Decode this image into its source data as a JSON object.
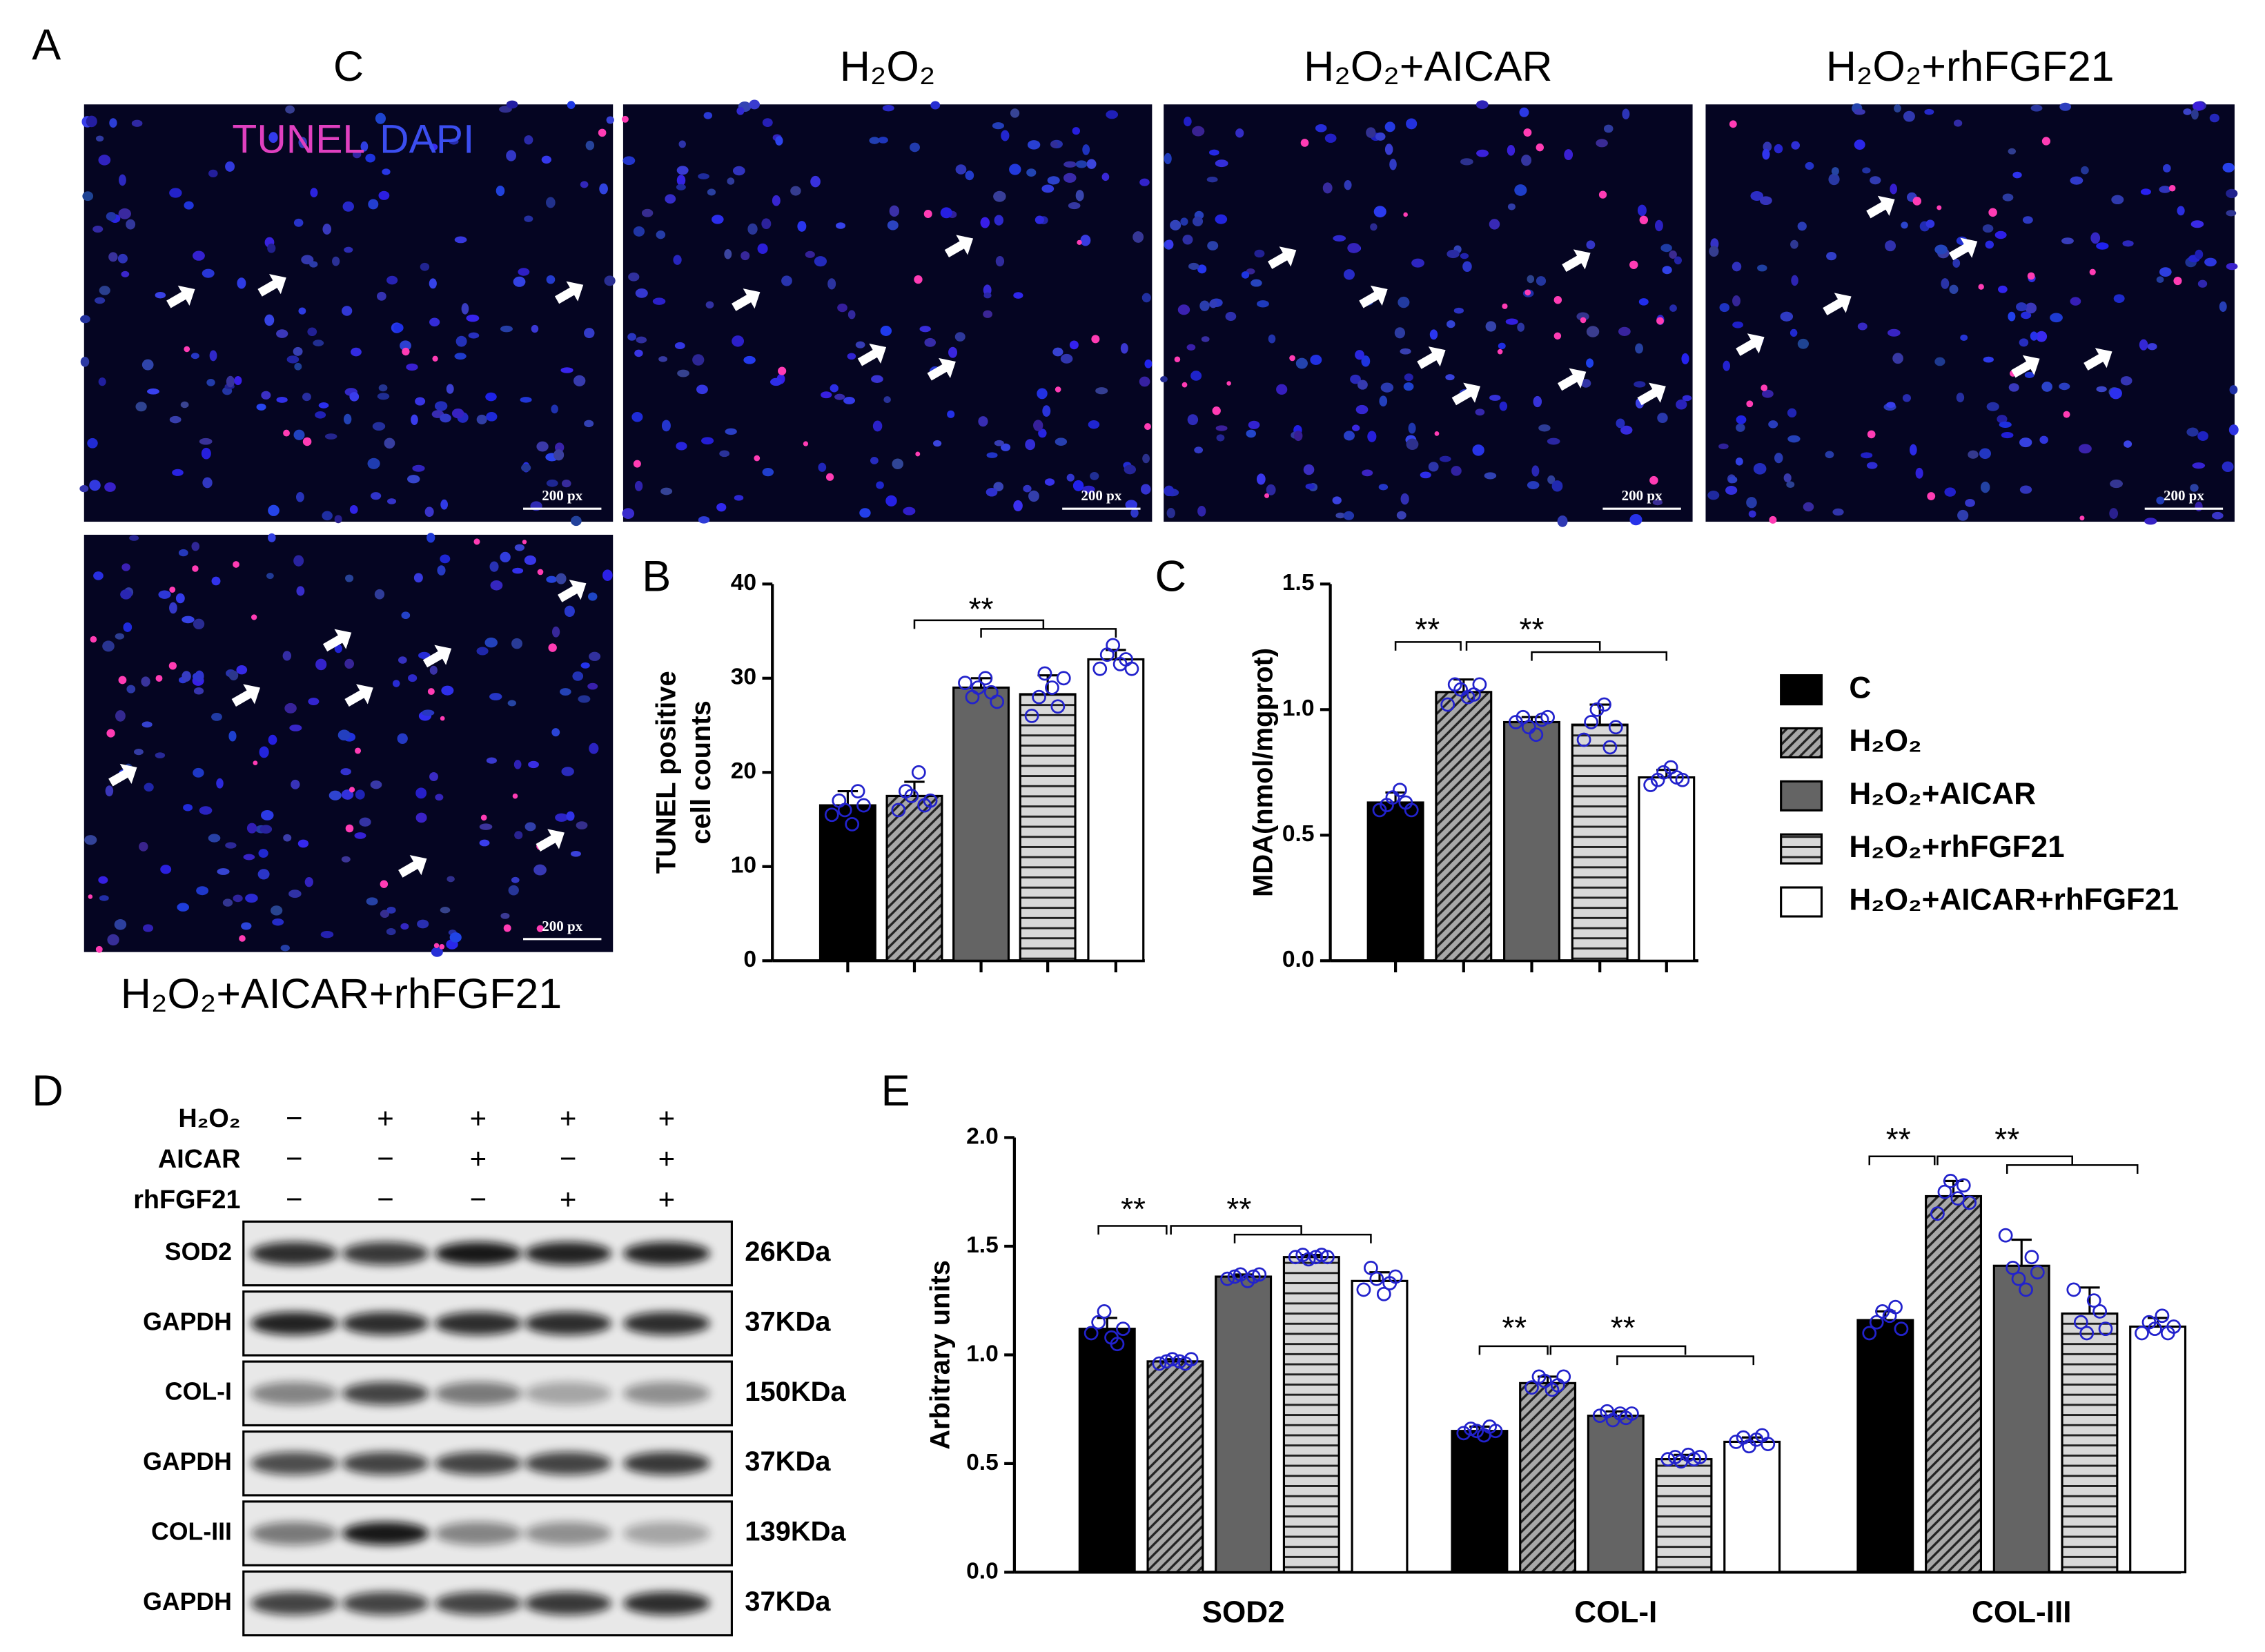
{
  "panel_labels": [
    "A",
    "B",
    "C",
    "D",
    "E"
  ],
  "micrographs": {
    "groups": [
      "C",
      "H₂O₂",
      "H₂O₂+AICAR",
      "H₂O₂+rhFGF21",
      "H₂O₂+AICAR+rhFGF21"
    ],
    "stain_labels": [
      "TUNEL",
      "DAPI"
    ],
    "scale_bar": "200 px"
  },
  "blot": {
    "conditions": [
      {
        "label": "H₂O₂",
        "signs": [
          "−",
          "+",
          "+",
          "+",
          "+"
        ]
      },
      {
        "label": "AICAR",
        "signs": [
          "−",
          "−",
          "+",
          "−",
          "+"
        ]
      },
      {
        "label": "rhFGF21",
        "signs": [
          "−",
          "−",
          "−",
          "+",
          "+"
        ]
      }
    ],
    "bands": [
      {
        "protein": "SOD2",
        "size": "26KDa"
      },
      {
        "protein": "GAPDH",
        "size": "37KDa"
      },
      {
        "protein": "COL-I",
        "size": "150KDa"
      },
      {
        "protein": "GAPDH",
        "size": "37KDa"
      },
      {
        "protein": "COL-III",
        "size": "139KDa"
      },
      {
        "protein": "GAPDH",
        "size": "37KDa"
      }
    ]
  },
  "chart_data": [
    {
      "type": "bar",
      "y_label": [
        "TUNEL positive",
        "cell counts"
      ],
      "categories": [
        null,
        null,
        null,
        null,
        null
      ],
      "values": [
        16.5,
        17.5,
        29,
        28.3,
        32
      ],
      "errors": [
        1.5,
        1.5,
        1,
        2,
        1
      ],
      "points": [
        [
          15.5,
          17,
          16,
          14.5,
          18,
          16.5
        ],
        [
          16,
          18,
          17.5,
          20,
          16.5,
          17
        ],
        [
          29.5,
          28,
          29,
          30,
          28.5,
          27.5
        ],
        [
          26,
          28,
          30.5,
          29,
          27,
          30
        ],
        [
          31,
          32.5,
          33.5,
          31.5,
          32,
          31
        ]
      ],
      "colors": [
        "#000000",
        "#a8a8a8",
        "#646464",
        "#d8d8d8",
        "#ffffff"
      ],
      "patterns": [
        null,
        "diagonal",
        null,
        "horizontal",
        null
      ],
      "point_color": "#2222cc",
      "ylim": [
        0,
        40
      ],
      "yticks": [
        0,
        10,
        20,
        30,
        40
      ],
      "annotations": [
        "**"
      ]
    },
    {
      "type": "bar",
      "y_label": [
        "MDA(nmol/mgprot)"
      ],
      "categories": [
        null,
        null,
        null,
        null,
        null
      ],
      "values": [
        0.63,
        1.07,
        0.95,
        0.94,
        0.73
      ],
      "errors": [
        0.04,
        0.05,
        0.02,
        0.08,
        0.03
      ],
      "points": [
        [
          0.6,
          0.62,
          0.65,
          0.68,
          0.63,
          0.6
        ],
        [
          1.02,
          1.1,
          1.08,
          1.05,
          1.06,
          1.1
        ],
        [
          0.95,
          0.97,
          0.93,
          0.9,
          0.96,
          0.97
        ],
        [
          0.88,
          0.95,
          1.0,
          1.02,
          0.85,
          0.93
        ],
        [
          0.7,
          0.72,
          0.75,
          0.77,
          0.73,
          0.72
        ]
      ],
      "colors": [
        "#000000",
        "#a8a8a8",
        "#646464",
        "#d8d8d8",
        "#ffffff"
      ],
      "patterns": [
        null,
        "diagonal",
        null,
        "horizontal",
        null
      ],
      "point_color": "#2222cc",
      "ylim": [
        0,
        1.5
      ],
      "yticks": [
        {
          "value": 0,
          "label": "0.0"
        },
        {
          "value": 0.5,
          "label": "0.5"
        },
        {
          "value": 1,
          "label": "1.0"
        },
        {
          "value": 1.5,
          "label": "1.5"
        }
      ],
      "annotations": [
        "**",
        "**"
      ]
    },
    {
      "type": "grouped_bar",
      "y_label": [
        "Arbitrary units"
      ],
      "categories": [
        "SOD2",
        "COL-I",
        "COL-III"
      ],
      "series": [
        {
          "name": "C",
          "color": "#000000",
          "pattern": null,
          "values": [
            1.12,
            0.65,
            1.16
          ],
          "errors": [
            0.05,
            0.02,
            0.04
          ],
          "points": [
            [
              1.1,
              1.15,
              1.2,
              1.08,
              1.05,
              1.12
            ],
            [
              0.64,
              0.66,
              0.65,
              0.63,
              0.67,
              0.65
            ],
            [
              1.1,
              1.15,
              1.2,
              1.18,
              1.22,
              1.12
            ]
          ]
        },
        {
          "name": "H₂O₂",
          "color": "#a8a8a8",
          "pattern": "diagonal",
          "values": [
            0.97,
            0.87,
            1.73
          ],
          "errors": [
            0.01,
            0.03,
            0.07
          ],
          "points": [
            [
              0.96,
              0.97,
              0.98,
              0.97,
              0.96,
              0.98
            ],
            [
              0.85,
              0.9,
              0.88,
              0.84,
              0.86,
              0.9
            ],
            [
              1.65,
              1.75,
              1.8,
              1.72,
              1.78,
              1.7
            ]
          ]
        },
        {
          "name": "H₂O₂+AICAR",
          "color": "#646464",
          "pattern": null,
          "values": [
            1.36,
            0.72,
            1.41
          ],
          "errors": [
            0.01,
            0.02,
            0.12
          ],
          "points": [
            [
              1.35,
              1.36,
              1.37,
              1.34,
              1.36,
              1.37
            ],
            [
              0.72,
              0.74,
              0.7,
              0.73,
              0.71,
              0.73
            ],
            [
              1.55,
              1.4,
              1.35,
              1.3,
              1.45,
              1.38
            ]
          ]
        },
        {
          "name": "H₂O₂+rhFGF21",
          "color": "#d8d8d8",
          "pattern": "horizontal",
          "values": [
            1.45,
            0.52,
            1.19
          ],
          "errors": [
            0.01,
            0.02,
            0.12
          ],
          "points": [
            [
              1.45,
              1.46,
              1.44,
              1.45,
              1.46,
              1.45
            ],
            [
              0.52,
              0.53,
              0.51,
              0.54,
              0.52,
              0.53
            ],
            [
              1.3,
              1.15,
              1.1,
              1.25,
              1.2,
              1.12
            ]
          ]
        },
        {
          "name": "H₂O₂+AICAR+rhFGF21",
          "color": "#ffffff",
          "pattern": null,
          "values": [
            1.34,
            0.6,
            1.13
          ],
          "errors": [
            0.04,
            0.02,
            0.04
          ],
          "points": [
            [
              1.3,
              1.4,
              1.35,
              1.28,
              1.33,
              1.36
            ],
            [
              0.6,
              0.62,
              0.58,
              0.61,
              0.63,
              0.59
            ],
            [
              1.1,
              1.15,
              1.12,
              1.18,
              1.1,
              1.13
            ]
          ]
        }
      ],
      "point_color": "#2222cc",
      "ylim": [
        0,
        2
      ],
      "yticks": [
        {
          "value": 0,
          "label": "0.0"
        },
        {
          "value": 0.5,
          "label": "0.5"
        },
        {
          "value": 1,
          "label": "1.0"
        },
        {
          "value": 1.5,
          "label": "1.5"
        },
        {
          "value": 2,
          "label": "2.0"
        }
      ],
      "legend": "right",
      "annotations": [
        "**",
        "**",
        "**",
        "**",
        "**",
        "**"
      ]
    }
  ]
}
